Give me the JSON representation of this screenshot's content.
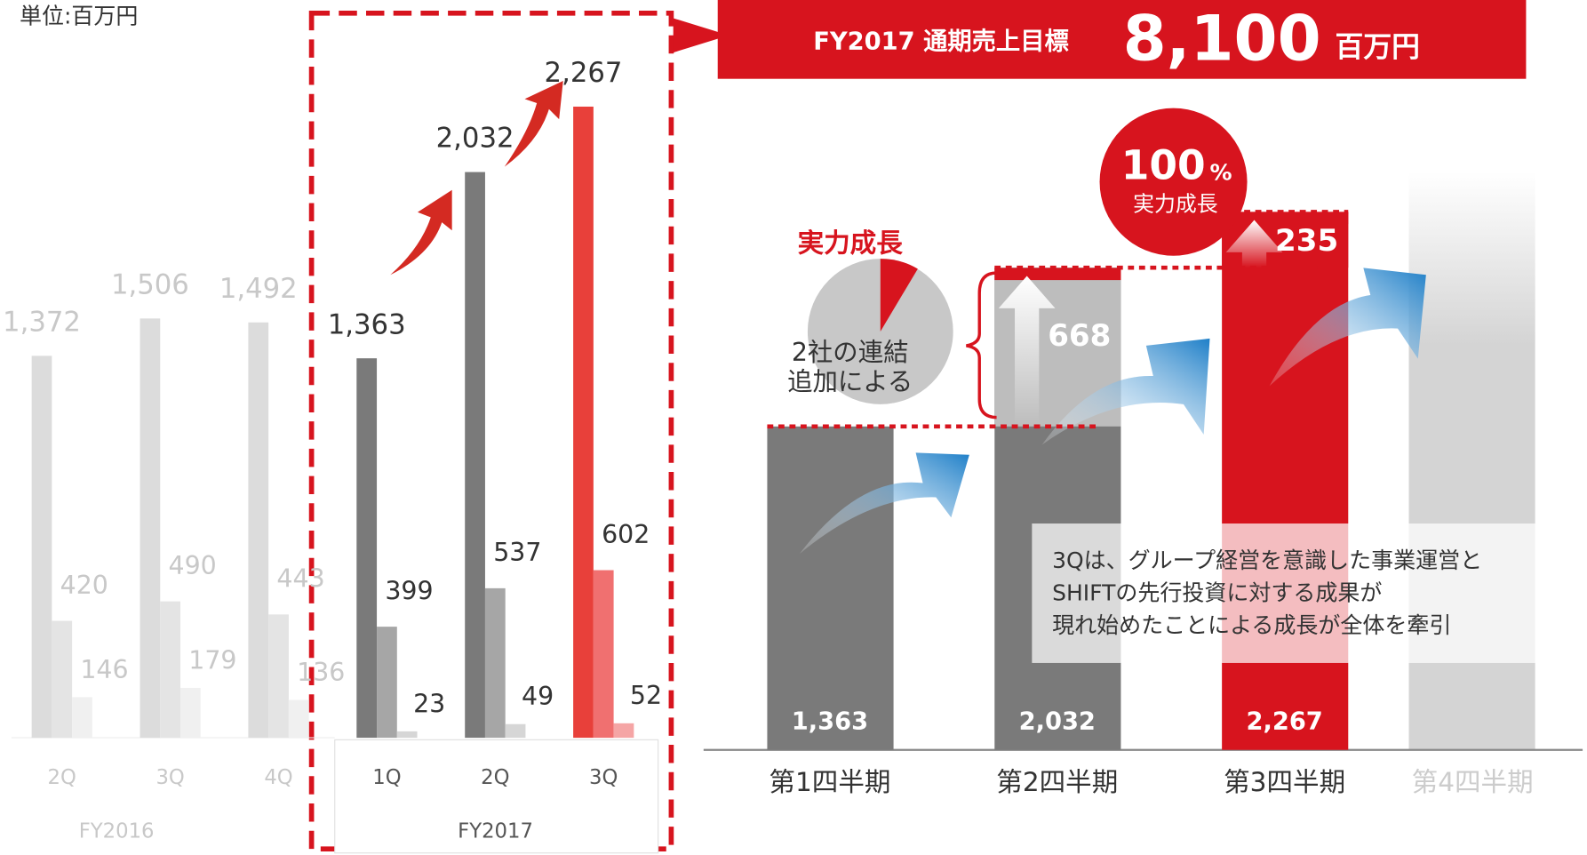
{
  "chart_data": [
    {
      "type": "bar",
      "unit": "単位:百万円",
      "categories": [
        "2Q",
        "3Q",
        "4Q",
        "1Q",
        "2Q",
        "3Q"
      ],
      "groups": [
        "FY2016",
        "FY2017"
      ],
      "series": [
        {
          "values": [
            1372,
            1506,
            1492,
            1363,
            2032,
            2267
          ],
          "value_labels": [
            "1,372",
            "1,506",
            "1,492",
            "1,363",
            "2,032",
            "2,267"
          ],
          "colors": [
            "#dcdcdc",
            "#dcdcdc",
            "#dcdcdc",
            "#7a7a7a",
            "#7a7a7a",
            "#e8403a"
          ]
        },
        {
          "values": [
            420,
            490,
            443,
            399,
            537,
            602
          ],
          "colors": [
            "#e4e4e4",
            "#e4e4e4",
            "#e4e4e4",
            "#a6a6a6",
            "#a6a6a6",
            "#f07070"
          ]
        },
        {
          "values": [
            146,
            179,
            136,
            23,
            49,
            52
          ],
          "colors": [
            "#f0f0f0",
            "#f0f0f0",
            "#f0f0f0",
            "#d6d6d6",
            "#d6d6d6",
            "#f5a5a5"
          ]
        }
      ],
      "label_colors": [
        "#c8c8c8",
        "#c8c8c8",
        "#c8c8c8",
        "#333333",
        "#333333",
        "#333333"
      ],
      "ylim": [
        0,
        2650
      ]
    },
    {
      "type": "bar",
      "title": "FY2017 通期売上目標",
      "target": {
        "value": 8100,
        "label": "8,100"
      },
      "target_unit": "百万円",
      "categories": [
        "第1四半期",
        "第2四半期",
        "第3四半期",
        "第4四半期"
      ],
      "category_colors": [
        "#333333",
        "#333333",
        "#333333",
        "#cccccc"
      ],
      "values": [
        1363,
        2032,
        2267,
        null
      ],
      "value_labels": [
        "1,363",
        "2,032",
        "2,267",
        null
      ],
      "colors": [
        "#7a7a7a",
        "#7a7a7a",
        "#d7141e",
        null
      ],
      "increments": [
        null,
        668,
        235
      ],
      "increment_colors": [
        null,
        "#bdbdbd",
        "#d7141e"
      ],
      "ylim": [
        0,
        3160
      ],
      "pie_label": "実力成長",
      "pie_note": [
        "2社の連結",
        "追加による"
      ],
      "badge_number": "100",
      "badge_unit": "%",
      "badge_label": "実力成長",
      "note": [
        "3Qは、グループ経営を意識した事業運営と",
        "SHIFTの先行投資に対する成果が",
        "現れ始めたことによる成長が全体を牽引"
      ]
    }
  ]
}
